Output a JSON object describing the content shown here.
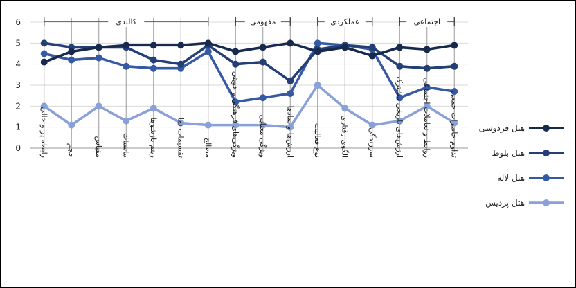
{
  "chart_data": {
    "type": "line",
    "ylim": [
      0,
      6
    ],
    "yticks": [
      "0",
      "1",
      "2",
      "3",
      "4",
      "5",
      "6"
    ],
    "categories": [
      "رابطه پر و خالی",
      "حجم",
      "مقیاس",
      "تناسبات",
      "ریتم بازشوها",
      "تقسیمات نما",
      "مصالح",
      "ویژگی‌های فرهنگی و هویتی",
      "ویژگی معنایی",
      "ارزش‌ها و نمادها",
      "نوع فعالیت",
      "الگوی رفتاری",
      "سرزندگی",
      "ارزش‌های تاریخی مشترک",
      "روابط و تعاملات اجتماعی",
      "تداوم خاطرات جمعی"
    ],
    "groups": [
      {
        "label": "کالبدی",
        "from": 0,
        "to": 6
      },
      {
        "label": "مفهومی",
        "from": 7,
        "to": 9
      },
      {
        "label": "عملکردی",
        "from": 10,
        "to": 12
      },
      {
        "label": "اجتماعی",
        "from": 13,
        "to": 15
      }
    ],
    "series": [
      {
        "name": "هتل فردوسی",
        "color": "#17294d",
        "values": [
          4.1,
          4.6,
          4.8,
          4.9,
          4.9,
          4.9,
          5.0,
          4.6,
          4.8,
          5.0,
          4.6,
          4.8,
          4.4,
          4.8,
          4.7,
          4.9
        ]
      },
      {
        "name": "هتل بلوط",
        "color": "#233f75",
        "values": [
          5.0,
          4.8,
          4.8,
          4.8,
          4.2,
          4.0,
          4.9,
          4.0,
          4.1,
          3.2,
          4.7,
          4.9,
          4.8,
          3.9,
          3.8,
          3.9
        ]
      },
      {
        "name": "هتل لاله",
        "color": "#3559a4",
        "values": [
          4.5,
          4.2,
          4.3,
          3.9,
          3.8,
          3.8,
          4.6,
          2.2,
          2.4,
          2.6,
          5.0,
          4.9,
          4.7,
          2.4,
          2.9,
          2.7
        ]
      },
      {
        "name": "هتل پردیس",
        "color": "#8aa0d8",
        "values": [
          2.0,
          1.1,
          2.0,
          1.3,
          1.9,
          1.2,
          1.1,
          1.1,
          1.1,
          1.0,
          3.0,
          1.9,
          1.1,
          1.3,
          2.0,
          1.2
        ]
      }
    ]
  }
}
